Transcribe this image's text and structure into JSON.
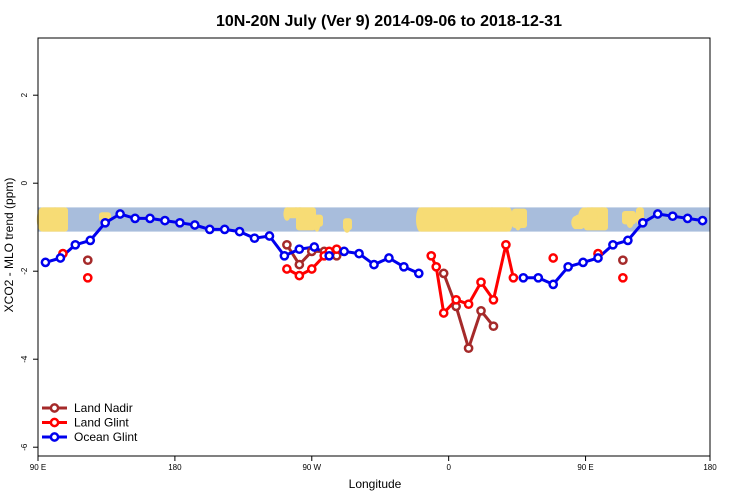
{
  "chart_data": {
    "type": "line",
    "title": "10N-20N July (Ver 9)   2014-09-06 to 2018-12-31",
    "xlabel": "Longitude",
    "ylabel": "XCO2 - MLO trend (ppm)",
    "xlim": [
      -90,
      180
    ],
    "ylim": [
      -6.2,
      3.3
    ],
    "x_ticks": [
      {
        "value": -90,
        "label": "90 E"
      },
      {
        "value": -35,
        "label": "180"
      },
      {
        "value": 20,
        "label": "90 W"
      },
      {
        "value": 75,
        "label": "0"
      },
      {
        "value": 130,
        "label": "90 E"
      },
      {
        "value": 180,
        "label": "180"
      }
    ],
    "y_ticks": [
      {
        "value": 2,
        "label": "2"
      },
      {
        "value": 0,
        "label": "0"
      },
      {
        "value": -2,
        "label": "-2"
      },
      {
        "value": -4,
        "label": "-4"
      },
      {
        "value": -6,
        "label": "-6"
      }
    ],
    "land_band": {
      "y_top": -0.55,
      "y_bottom": -1.1,
      "ocean_color": "#a8bddc",
      "land_color": "#f7dc75"
    },
    "legend": {
      "placement": "bottom-left"
    },
    "series": [
      {
        "name": "Land Nadir",
        "color": "#a52a2a",
        "points": [
          [
            -70,
            -1.75
          ],
          [
            10,
            -1.4
          ],
          [
            15,
            -1.85
          ],
          [
            20,
            -1.55
          ],
          [
            25,
            -1.55
          ],
          [
            30,
            -1.65
          ],
          [
            73,
            -2.05
          ],
          [
            78,
            -2.8
          ],
          [
            83,
            -3.75
          ],
          [
            88,
            -2.9
          ],
          [
            93,
            -3.25
          ],
          [
            145,
            -1.75
          ]
        ],
        "segments": [
          [
            1,
            2,
            3,
            4,
            5
          ],
          [
            6,
            7,
            8,
            9,
            10
          ]
        ]
      },
      {
        "name": "Land Glint",
        "color": "#ff0000",
        "points": [
          [
            -80,
            -1.6
          ],
          [
            -70,
            -2.15
          ],
          [
            10,
            -1.95
          ],
          [
            15,
            -2.1
          ],
          [
            20,
            -1.95
          ],
          [
            25,
            -1.65
          ],
          [
            27,
            -1.55
          ],
          [
            30,
            -1.5
          ],
          [
            68,
            -1.65
          ],
          [
            70,
            -1.9
          ],
          [
            73,
            -2.95
          ],
          [
            78,
            -2.65
          ],
          [
            83,
            -2.75
          ],
          [
            88,
            -2.25
          ],
          [
            93,
            -2.65
          ],
          [
            98,
            -1.4
          ],
          [
            101,
            -2.15
          ],
          [
            117,
            -1.7
          ],
          [
            135,
            -1.6
          ],
          [
            145,
            -2.15
          ]
        ],
        "segments": [
          [
            2,
            3,
            4,
            5,
            6,
            7
          ],
          [
            8,
            9,
            10,
            11,
            12,
            13,
            14,
            15,
            16
          ]
        ]
      },
      {
        "name": "Ocean Glint",
        "color": "#0000ee",
        "points": [
          [
            -87,
            -1.8
          ],
          [
            -81,
            -1.7
          ],
          [
            -75,
            -1.4
          ],
          [
            -69,
            -1.3
          ],
          [
            -63,
            -0.9
          ],
          [
            -57,
            -0.7
          ],
          [
            -51,
            -0.8
          ],
          [
            -45,
            -0.8
          ],
          [
            -39,
            -0.85
          ],
          [
            -33,
            -0.9
          ],
          [
            -27,
            -0.95
          ],
          [
            -21,
            -1.05
          ],
          [
            -15,
            -1.05
          ],
          [
            -9,
            -1.1
          ],
          [
            -3,
            -1.25
          ],
          [
            3,
            -1.2
          ],
          [
            9,
            -1.65
          ],
          [
            15,
            -1.5
          ],
          [
            21,
            -1.45
          ],
          [
            27,
            -1.65
          ],
          [
            33,
            -1.55
          ],
          [
            39,
            -1.6
          ],
          [
            45,
            -1.85
          ],
          [
            51,
            -1.7
          ],
          [
            57,
            -1.9
          ],
          [
            63,
            -2.05
          ],
          [
            105,
            -2.15
          ],
          [
            111,
            -2.15
          ],
          [
            117,
            -2.3
          ],
          [
            123,
            -1.9
          ],
          [
            129,
            -1.8
          ],
          [
            135,
            -1.7
          ],
          [
            141,
            -1.4
          ],
          [
            147,
            -1.3
          ],
          [
            153,
            -0.9
          ],
          [
            159,
            -0.7
          ],
          [
            165,
            -0.75
          ],
          [
            171,
            -0.8
          ],
          [
            177,
            -0.85
          ]
        ],
        "segments": [
          [
            0,
            1,
            2,
            3,
            4,
            5,
            6,
            7,
            8,
            9,
            10,
            11,
            12,
            13,
            14,
            15,
            16,
            17,
            18,
            19,
            20,
            21,
            22,
            23,
            24,
            25
          ],
          [
            26,
            27,
            28,
            29,
            30,
            31,
            32,
            33,
            34,
            35,
            36,
            37,
            38
          ]
        ]
      }
    ]
  }
}
